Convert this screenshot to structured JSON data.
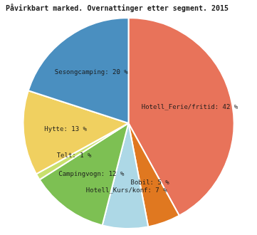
{
  "chart_data": {
    "type": "pie",
    "title": "Påvirkbart marked. Overnattinger etter segment. 2015",
    "categories": [
      "Hotell_Ferie/fritid: 42 %",
      "Bobil: 5 %",
      "Hotell_Kurs/konf: 7 %",
      "Campingvogn: 12 %",
      "Telt: 1 %",
      "Hytte: 13 %",
      "Sesongcamping: 20 %"
    ],
    "values": [
      42,
      5,
      7,
      12,
      1,
      13,
      20
    ],
    "colors": [
      "#E8735A",
      "#E07820",
      "#ADD8E6",
      "#7DC053",
      "#C8E06E",
      "#F0D060",
      "#4A8FC0"
    ]
  }
}
